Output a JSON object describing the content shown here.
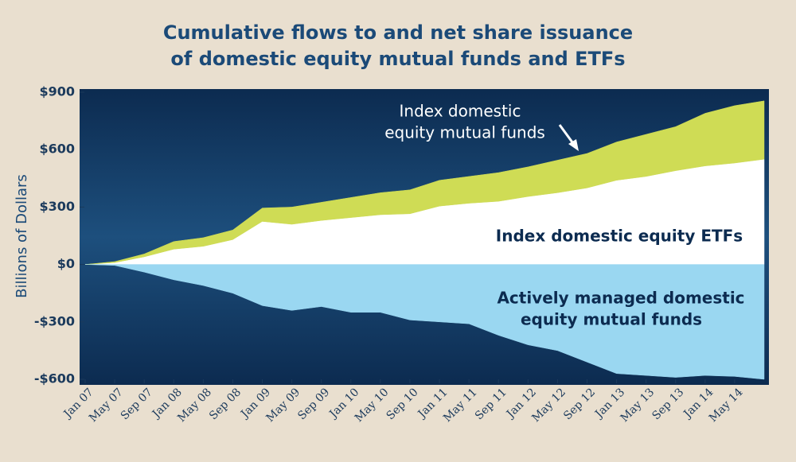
{
  "chart_data": {
    "type": "stacked-area",
    "title": [
      "Cumulative flows to and net share issuance",
      "of domestic equity mutual funds and ETFs"
    ],
    "y_label": "Billions of Dollars",
    "categories": [
      "Jan 07",
      "May 07",
      "Sep 07",
      "Jan 08",
      "May 08",
      "Sep 08",
      "Jan 09",
      "May 09",
      "Sep 09",
      "Jan 10",
      "May 10",
      "Sep 10",
      "Jan 11",
      "May 11",
      "Sep 11",
      "Jan 12",
      "May 12",
      "Sep 12",
      "Jan 13",
      "May 13",
      "Sep 13",
      "Jan 14",
      "May 14",
      null
    ],
    "series": [
      {
        "name": [
          "Index domestic equity ETFs"
        ],
        "color": "#ffffff",
        "stack": "positive",
        "values": [
          0,
          10,
          40,
          80,
          95,
          130,
          225,
          210,
          230,
          245,
          260,
          265,
          305,
          320,
          330,
          355,
          375,
          400,
          440,
          460,
          490,
          515,
          530,
          550
        ]
      },
      {
        "name": [
          "Index domestic",
          "equity mutual funds"
        ],
        "color": "#cfdc55",
        "stack": "positive",
        "values": [
          0,
          5,
          15,
          40,
          45,
          50,
          70,
          90,
          95,
          105,
          115,
          125,
          135,
          140,
          150,
          155,
          170,
          180,
          200,
          220,
          230,
          275,
          300,
          305
        ]
      },
      {
        "name": [
          "Actively managed domestic",
          "equity mutual funds"
        ],
        "color": "#9ad7f1",
        "stack": "negative",
        "values": [
          0,
          -5,
          -40,
          -80,
          -110,
          -150,
          -215,
          -240,
          -220,
          -250,
          -250,
          -290,
          -300,
          -310,
          -370,
          -420,
          -450,
          -510,
          -570,
          -580,
          -590,
          -580,
          -585,
          -600
        ]
      }
    ],
    "ylim": [
      -600,
      900
    ],
    "yticks": [
      {
        "value": 900,
        "label": "$900"
      },
      {
        "value": 600,
        "label": "$600"
      },
      {
        "value": 300,
        "label": "$300"
      },
      {
        "value": 0,
        "label": "$0"
      },
      {
        "value": -300,
        "label": "-$300"
      },
      {
        "value": -600,
        "label": "-$600"
      }
    ]
  }
}
